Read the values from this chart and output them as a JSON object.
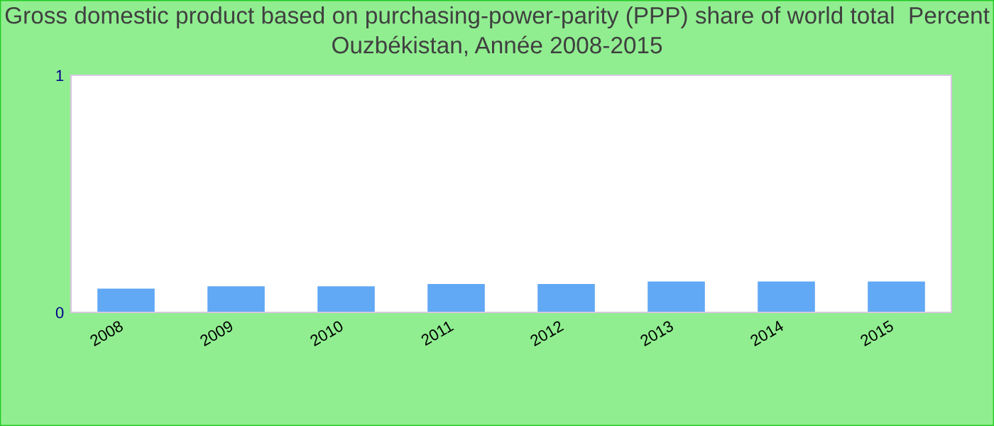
{
  "chart_data": {
    "type": "bar",
    "title": "Gross domestic product based on purchasing-power-parity (PPP) share of world total  Percent\nOuzbékistan, Année 2008-2015",
    "categories": [
      "2008",
      "2009",
      "2010",
      "2011",
      "2012",
      "2013",
      "2014",
      "2015"
    ],
    "series": [
      {
        "color": "#61a8f5",
        "values": [
          0.1,
          0.11,
          0.11,
          0.12,
          0.12,
          0.13,
          0.13,
          0.13
        ]
      }
    ],
    "ylim": [
      0,
      1
    ],
    "yticks": [
      0,
      1
    ],
    "grid": false,
    "legend": false
  }
}
